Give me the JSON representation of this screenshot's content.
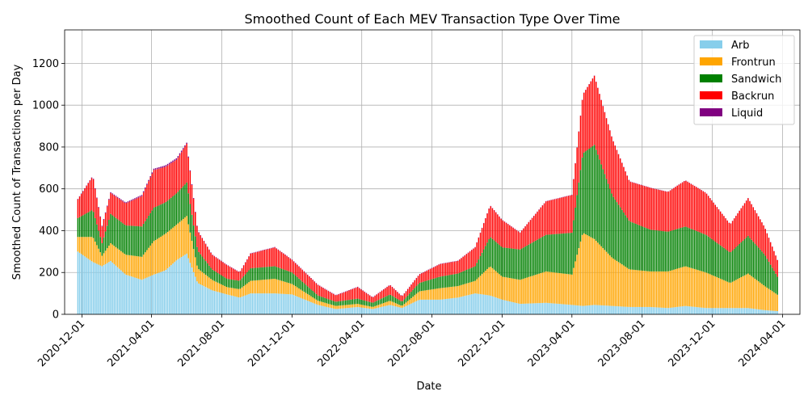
{
  "chart_data": {
    "type": "bar",
    "stacked": true,
    "title": "Smoothed Count of Each MEV Transaction Type Over Time",
    "xlabel": "Date",
    "ylabel": "Smoothed Count of Transactions per Day",
    "x_start": "2020-11-01",
    "x_end": "2024-05-01",
    "ylim": [
      0,
      1360
    ],
    "grid": true,
    "legend_position": "upper right",
    "x_ticks": [
      "2020-12-01",
      "2021-04-01",
      "2021-08-01",
      "2021-12-01",
      "2022-04-01",
      "2022-08-01",
      "2022-12-01",
      "2023-04-01",
      "2023-08-01",
      "2023-12-01",
      "2024-04-01"
    ],
    "y_ticks": [
      0,
      200,
      400,
      600,
      800,
      1000,
      1200
    ],
    "series": [
      {
        "name": "Arb",
        "color": "#87ceeb",
        "points": [
          [
            "2020-11-24",
            300
          ],
          [
            "2020-12-20",
            250
          ],
          [
            "2021-01-05",
            230
          ],
          [
            "2021-01-20",
            255
          ],
          [
            "2021-02-15",
            190
          ],
          [
            "2021-03-15",
            165
          ],
          [
            "2021-04-05",
            190
          ],
          [
            "2021-04-25",
            210
          ],
          [
            "2021-05-15",
            260
          ],
          [
            "2021-06-01",
            290
          ],
          [
            "2021-06-20",
            150
          ],
          [
            "2021-07-15",
            115
          ],
          [
            "2021-08-10",
            95
          ],
          [
            "2021-09-01",
            80
          ],
          [
            "2021-09-20",
            100
          ],
          [
            "2021-11-01",
            100
          ],
          [
            "2021-12-01",
            95
          ],
          [
            "2022-01-15",
            45
          ],
          [
            "2022-02-15",
            25
          ],
          [
            "2022-03-25",
            35
          ],
          [
            "2022-04-20",
            25
          ],
          [
            "2022-05-20",
            45
          ],
          [
            "2022-06-10",
            30
          ],
          [
            "2022-07-10",
            70
          ],
          [
            "2022-08-15",
            70
          ],
          [
            "2022-09-15",
            80
          ],
          [
            "2022-10-15",
            100
          ],
          [
            "2022-11-10",
            90
          ],
          [
            "2022-12-01",
            70
          ],
          [
            "2023-01-01",
            50
          ],
          [
            "2023-02-15",
            55
          ],
          [
            "2023-04-01",
            45
          ],
          [
            "2023-04-20",
            40
          ],
          [
            "2023-05-10",
            45
          ],
          [
            "2023-06-10",
            40
          ],
          [
            "2023-07-10",
            35
          ],
          [
            "2023-08-15",
            35
          ],
          [
            "2023-09-15",
            30
          ],
          [
            "2023-10-15",
            40
          ],
          [
            "2023-11-20",
            30
          ],
          [
            "2024-01-01",
            30
          ],
          [
            "2024-02-01",
            30
          ],
          [
            "2024-03-01",
            20
          ],
          [
            "2024-03-25",
            15
          ]
        ]
      },
      {
        "name": "Frontrun",
        "color": "#ffa500",
        "points": [
          [
            "2020-11-24",
            70
          ],
          [
            "2020-12-20",
            120
          ],
          [
            "2021-01-05",
            50
          ],
          [
            "2021-01-20",
            85
          ],
          [
            "2021-02-15",
            95
          ],
          [
            "2021-03-15",
            110
          ],
          [
            "2021-04-05",
            160
          ],
          [
            "2021-04-25",
            175
          ],
          [
            "2021-05-15",
            170
          ],
          [
            "2021-06-01",
            180
          ],
          [
            "2021-06-20",
            70
          ],
          [
            "2021-07-15",
            50
          ],
          [
            "2021-08-10",
            35
          ],
          [
            "2021-09-01",
            40
          ],
          [
            "2021-09-20",
            60
          ],
          [
            "2021-11-01",
            70
          ],
          [
            "2021-12-01",
            50
          ],
          [
            "2022-01-15",
            20
          ],
          [
            "2022-02-15",
            15
          ],
          [
            "2022-03-25",
            15
          ],
          [
            "2022-04-20",
            10
          ],
          [
            "2022-05-20",
            20
          ],
          [
            "2022-06-10",
            10
          ],
          [
            "2022-07-10",
            40
          ],
          [
            "2022-08-15",
            55
          ],
          [
            "2022-09-15",
            55
          ],
          [
            "2022-10-15",
            60
          ],
          [
            "2022-11-10",
            140
          ],
          [
            "2022-12-01",
            110
          ],
          [
            "2023-01-01",
            115
          ],
          [
            "2023-02-15",
            150
          ],
          [
            "2023-04-01",
            145
          ],
          [
            "2023-04-20",
            350
          ],
          [
            "2023-05-10",
            315
          ],
          [
            "2023-06-10",
            230
          ],
          [
            "2023-07-10",
            180
          ],
          [
            "2023-08-15",
            170
          ],
          [
            "2023-09-15",
            175
          ],
          [
            "2023-10-15",
            190
          ],
          [
            "2023-11-20",
            170
          ],
          [
            "2024-01-01",
            120
          ],
          [
            "2024-02-01",
            165
          ],
          [
            "2024-03-01",
            115
          ],
          [
            "2024-03-25",
            75
          ]
        ]
      },
      {
        "name": "Sandwich",
        "color": "#008000",
        "points": [
          [
            "2020-11-24",
            90
          ],
          [
            "2020-12-20",
            130
          ],
          [
            "2021-01-05",
            60
          ],
          [
            "2021-01-20",
            140
          ],
          [
            "2021-02-15",
            140
          ],
          [
            "2021-03-15",
            145
          ],
          [
            "2021-04-05",
            160
          ],
          [
            "2021-04-25",
            150
          ],
          [
            "2021-05-15",
            150
          ],
          [
            "2021-06-01",
            160
          ],
          [
            "2021-06-20",
            85
          ],
          [
            "2021-07-15",
            50
          ],
          [
            "2021-08-10",
            40
          ],
          [
            "2021-09-01",
            40
          ],
          [
            "2021-09-20",
            60
          ],
          [
            "2021-11-01",
            60
          ],
          [
            "2021-12-01",
            55
          ],
          [
            "2022-01-15",
            25
          ],
          [
            "2022-02-15",
            20
          ],
          [
            "2022-03-25",
            25
          ],
          [
            "2022-04-20",
            20
          ],
          [
            "2022-05-20",
            30
          ],
          [
            "2022-06-10",
            20
          ],
          [
            "2022-07-10",
            40
          ],
          [
            "2022-08-15",
            55
          ],
          [
            "2022-09-15",
            60
          ],
          [
            "2022-10-15",
            70
          ],
          [
            "2022-11-10",
            140
          ],
          [
            "2022-12-01",
            140
          ],
          [
            "2023-01-01",
            145
          ],
          [
            "2023-02-15",
            175
          ],
          [
            "2023-04-01",
            200
          ],
          [
            "2023-04-20",
            380
          ],
          [
            "2023-05-10",
            450
          ],
          [
            "2023-06-10",
            300
          ],
          [
            "2023-07-10",
            230
          ],
          [
            "2023-08-15",
            200
          ],
          [
            "2023-09-15",
            190
          ],
          [
            "2023-10-15",
            190
          ],
          [
            "2023-11-20",
            180
          ],
          [
            "2024-01-01",
            145
          ],
          [
            "2024-02-01",
            180
          ],
          [
            "2024-03-01",
            150
          ],
          [
            "2024-03-25",
            80
          ]
        ]
      },
      {
        "name": "Backrun",
        "color": "#ff0000",
        "points": [
          [
            "2020-11-24",
            90
          ],
          [
            "2020-12-20",
            160
          ],
          [
            "2021-01-05",
            80
          ],
          [
            "2021-01-20",
            100
          ],
          [
            "2021-02-15",
            105
          ],
          [
            "2021-03-15",
            145
          ],
          [
            "2021-04-05",
            180
          ],
          [
            "2021-04-25",
            170
          ],
          [
            "2021-05-15",
            160
          ],
          [
            "2021-06-01",
            185
          ],
          [
            "2021-06-20",
            95
          ],
          [
            "2021-07-15",
            70
          ],
          [
            "2021-08-10",
            65
          ],
          [
            "2021-09-01",
            40
          ],
          [
            "2021-09-20",
            70
          ],
          [
            "2021-11-01",
            90
          ],
          [
            "2021-12-01",
            60
          ],
          [
            "2022-01-15",
            50
          ],
          [
            "2022-02-15",
            30
          ],
          [
            "2022-03-25",
            55
          ],
          [
            "2022-04-20",
            25
          ],
          [
            "2022-05-20",
            45
          ],
          [
            "2022-06-10",
            25
          ],
          [
            "2022-07-10",
            40
          ],
          [
            "2022-08-15",
            60
          ],
          [
            "2022-09-15",
            60
          ],
          [
            "2022-10-15",
            90
          ],
          [
            "2022-11-10",
            150
          ],
          [
            "2022-12-01",
            130
          ],
          [
            "2023-01-01",
            80
          ],
          [
            "2023-02-15",
            160
          ],
          [
            "2023-04-01",
            180
          ],
          [
            "2023-04-20",
            280
          ],
          [
            "2023-05-10",
            330
          ],
          [
            "2023-06-10",
            270
          ],
          [
            "2023-07-10",
            190
          ],
          [
            "2023-08-15",
            200
          ],
          [
            "2023-09-15",
            190
          ],
          [
            "2023-10-15",
            220
          ],
          [
            "2023-11-20",
            200
          ],
          [
            "2024-01-01",
            135
          ],
          [
            "2024-02-01",
            180
          ],
          [
            "2024-03-01",
            130
          ],
          [
            "2024-03-25",
            75
          ]
        ]
      },
      {
        "name": "Liquid",
        "color": "#800080",
        "points": [
          [
            "2020-11-24",
            2
          ],
          [
            "2021-05-20",
            8
          ],
          [
            "2021-06-20",
            2
          ],
          [
            "2024-03-25",
            1
          ]
        ]
      }
    ]
  }
}
